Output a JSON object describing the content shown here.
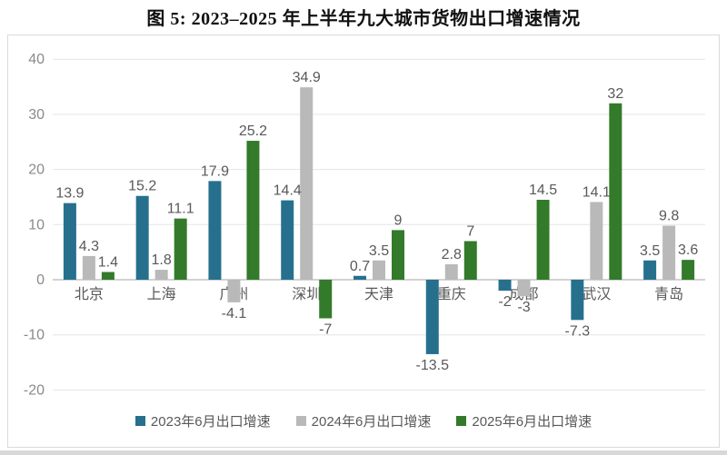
{
  "title": "图 5: 2023–2025 年上半年九大城市货物出口增速情况",
  "chart_data": {
    "type": "bar",
    "title": "图 5: 2023–2025 年上半年九大城市货物出口增速情况",
    "categories": [
      "北京",
      "上海",
      "广州",
      "深圳",
      "天津",
      "重庆",
      "成都",
      "武汉",
      "青岛"
    ],
    "series": [
      {
        "name": "2023年6月出口增速",
        "color": "#26708e",
        "values": [
          13.9,
          15.2,
          17.9,
          14.4,
          0.7,
          -13.5,
          -2,
          -7.3,
          3.5
        ]
      },
      {
        "name": "2024年6月出口增速",
        "color": "#b9b9b9",
        "values": [
          4.3,
          1.8,
          -4.1,
          34.9,
          3.5,
          2.8,
          -3,
          14.1,
          9.8
        ]
      },
      {
        "name": "2025年6月出口增速",
        "color": "#337a2b",
        "values": [
          1.4,
          11.1,
          25.2,
          -7,
          9,
          7,
          14.5,
          32,
          3.6
        ]
      }
    ],
    "xlabel": "",
    "ylabel": "",
    "ylim": [
      -20,
      40
    ],
    "yticks": [
      40,
      30,
      20,
      10,
      0,
      -10,
      -20
    ],
    "grid": true,
    "legend_position": "bottom"
  }
}
